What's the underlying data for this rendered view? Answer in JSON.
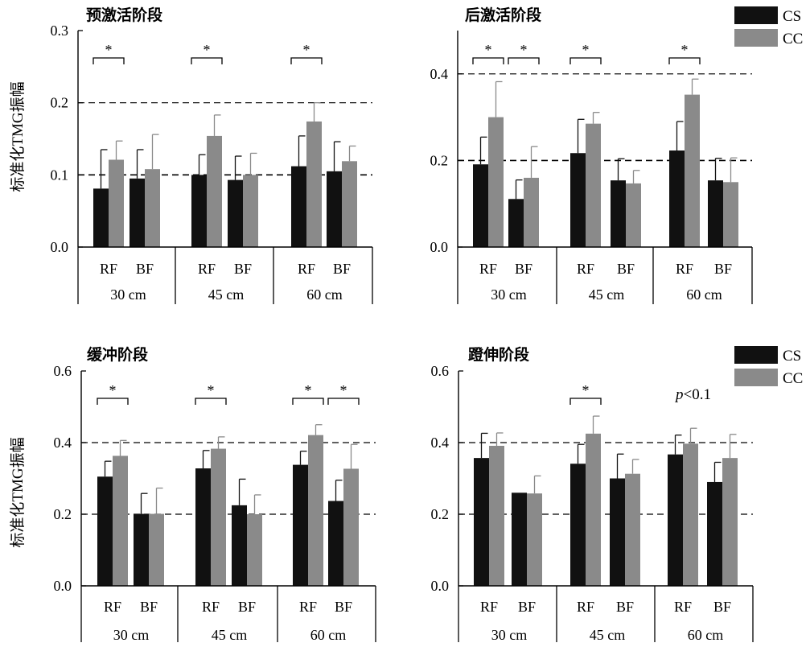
{
  "figure": {
    "ylabel": "标准化TMG振幅",
    "legend": [
      {
        "label": "CS",
        "color": "#111111"
      },
      {
        "label": "CC",
        "color": "#8a8a8a"
      }
    ],
    "pnote_italic": "p",
    "pnote_rest": "<0.1"
  },
  "chart_data": [
    {
      "type": "bar",
      "title": "预激活阶段",
      "groups": [
        "30 cm",
        "45 cm",
        "60 cm"
      ],
      "categories": [
        "RF",
        "BF",
        "RF",
        "BF",
        "RF",
        "BF"
      ],
      "ylim": [
        0,
        0.3
      ],
      "yticks": [
        "0.0",
        "0.1",
        "0.2",
        "0.3"
      ],
      "reference_lines": [
        0.1,
        0.2
      ],
      "series": [
        {
          "name": "CS",
          "values": [
            0.081,
            0.095,
            0.1,
            0.093,
            0.112,
            0.105
          ],
          "errors": [
            0.054,
            0.04,
            0.028,
            0.033,
            0.042,
            0.041
          ]
        },
        {
          "name": "CC",
          "values": [
            0.121,
            0.108,
            0.154,
            0.1,
            0.174,
            0.119
          ],
          "errors": [
            0.026,
            0.048,
            0.029,
            0.03,
            0.026,
            0.021
          ]
        }
      ],
      "significance": [
        {
          "category": 0,
          "label": "*"
        },
        {
          "category": 2,
          "label": "*"
        },
        {
          "category": 4,
          "label": "*"
        }
      ]
    },
    {
      "type": "bar",
      "title": "后激活阶段",
      "groups": [
        "30 cm",
        "45 cm",
        "60 cm"
      ],
      "categories": [
        "RF",
        "BF",
        "RF",
        "BF",
        "RF",
        "BF"
      ],
      "ylim": [
        0,
        0.5
      ],
      "yticks": [
        "0.0",
        "0.2",
        "0.4"
      ],
      "reference_lines": [
        0.2,
        0.4
      ],
      "series": [
        {
          "name": "CS",
          "values": [
            0.191,
            0.111,
            0.217,
            0.154,
            0.223,
            0.154
          ],
          "errors": [
            0.063,
            0.044,
            0.078,
            0.05,
            0.067,
            0.051
          ]
        },
        {
          "name": "CC",
          "values": [
            0.3,
            0.16,
            0.285,
            0.147,
            0.352,
            0.15
          ],
          "errors": [
            0.082,
            0.072,
            0.026,
            0.03,
            0.036,
            0.056
          ]
        }
      ],
      "significance": [
        {
          "category": 0,
          "label": "*"
        },
        {
          "category": 1,
          "label": "*"
        },
        {
          "category": 2,
          "label": "*"
        },
        {
          "category": 4,
          "label": "*"
        }
      ]
    },
    {
      "type": "bar",
      "title": "缓冲阶段",
      "groups": [
        "30 cm",
        "45 cm",
        "60 cm"
      ],
      "categories": [
        "RF",
        "BF",
        "RF",
        "BF",
        "RF",
        "BF"
      ],
      "ylim": [
        0,
        0.6
      ],
      "yticks": [
        "0.0",
        "0.2",
        "0.4",
        "0.6"
      ],
      "reference_lines": [
        0.2,
        0.4
      ],
      "series": [
        {
          "name": "CS",
          "values": [
            0.305,
            0.201,
            0.328,
            0.225,
            0.338,
            0.237
          ],
          "errors": [
            0.043,
            0.057,
            0.05,
            0.073,
            0.038,
            0.058
          ]
        },
        {
          "name": "CC",
          "values": [
            0.363,
            0.201,
            0.383,
            0.2,
            0.421,
            0.327
          ],
          "errors": [
            0.043,
            0.072,
            0.033,
            0.054,
            0.029,
            0.068
          ]
        }
      ],
      "significance": [
        {
          "category": 0,
          "label": "*"
        },
        {
          "category": 2,
          "label": "*"
        },
        {
          "category": 4,
          "label": "*"
        },
        {
          "category": 5,
          "label": "*"
        }
      ]
    },
    {
      "type": "bar",
      "title": "蹬伸阶段",
      "groups": [
        "30 cm",
        "45 cm",
        "60 cm"
      ],
      "categories": [
        "RF",
        "BF",
        "RF",
        "BF",
        "RF",
        "BF"
      ],
      "ylim": [
        0,
        0.6
      ],
      "yticks": [
        "0.0",
        "0.2",
        "0.4",
        "0.6"
      ],
      "reference_lines": [
        0.2,
        0.4
      ],
      "series": [
        {
          "name": "CS",
          "values": [
            0.357,
            0.26,
            0.341,
            0.3,
            0.367,
            0.29
          ],
          "errors": [
            0.069,
            0.0,
            0.054,
            0.068,
            0.054,
            0.055
          ]
        },
        {
          "name": "CC",
          "values": [
            0.391,
            0.258,
            0.425,
            0.313,
            0.397,
            0.357
          ],
          "errors": [
            0.036,
            0.049,
            0.049,
            0.04,
            0.043,
            0.066
          ]
        }
      ],
      "significance": [
        {
          "category": 2,
          "label": "*"
        }
      ]
    }
  ]
}
